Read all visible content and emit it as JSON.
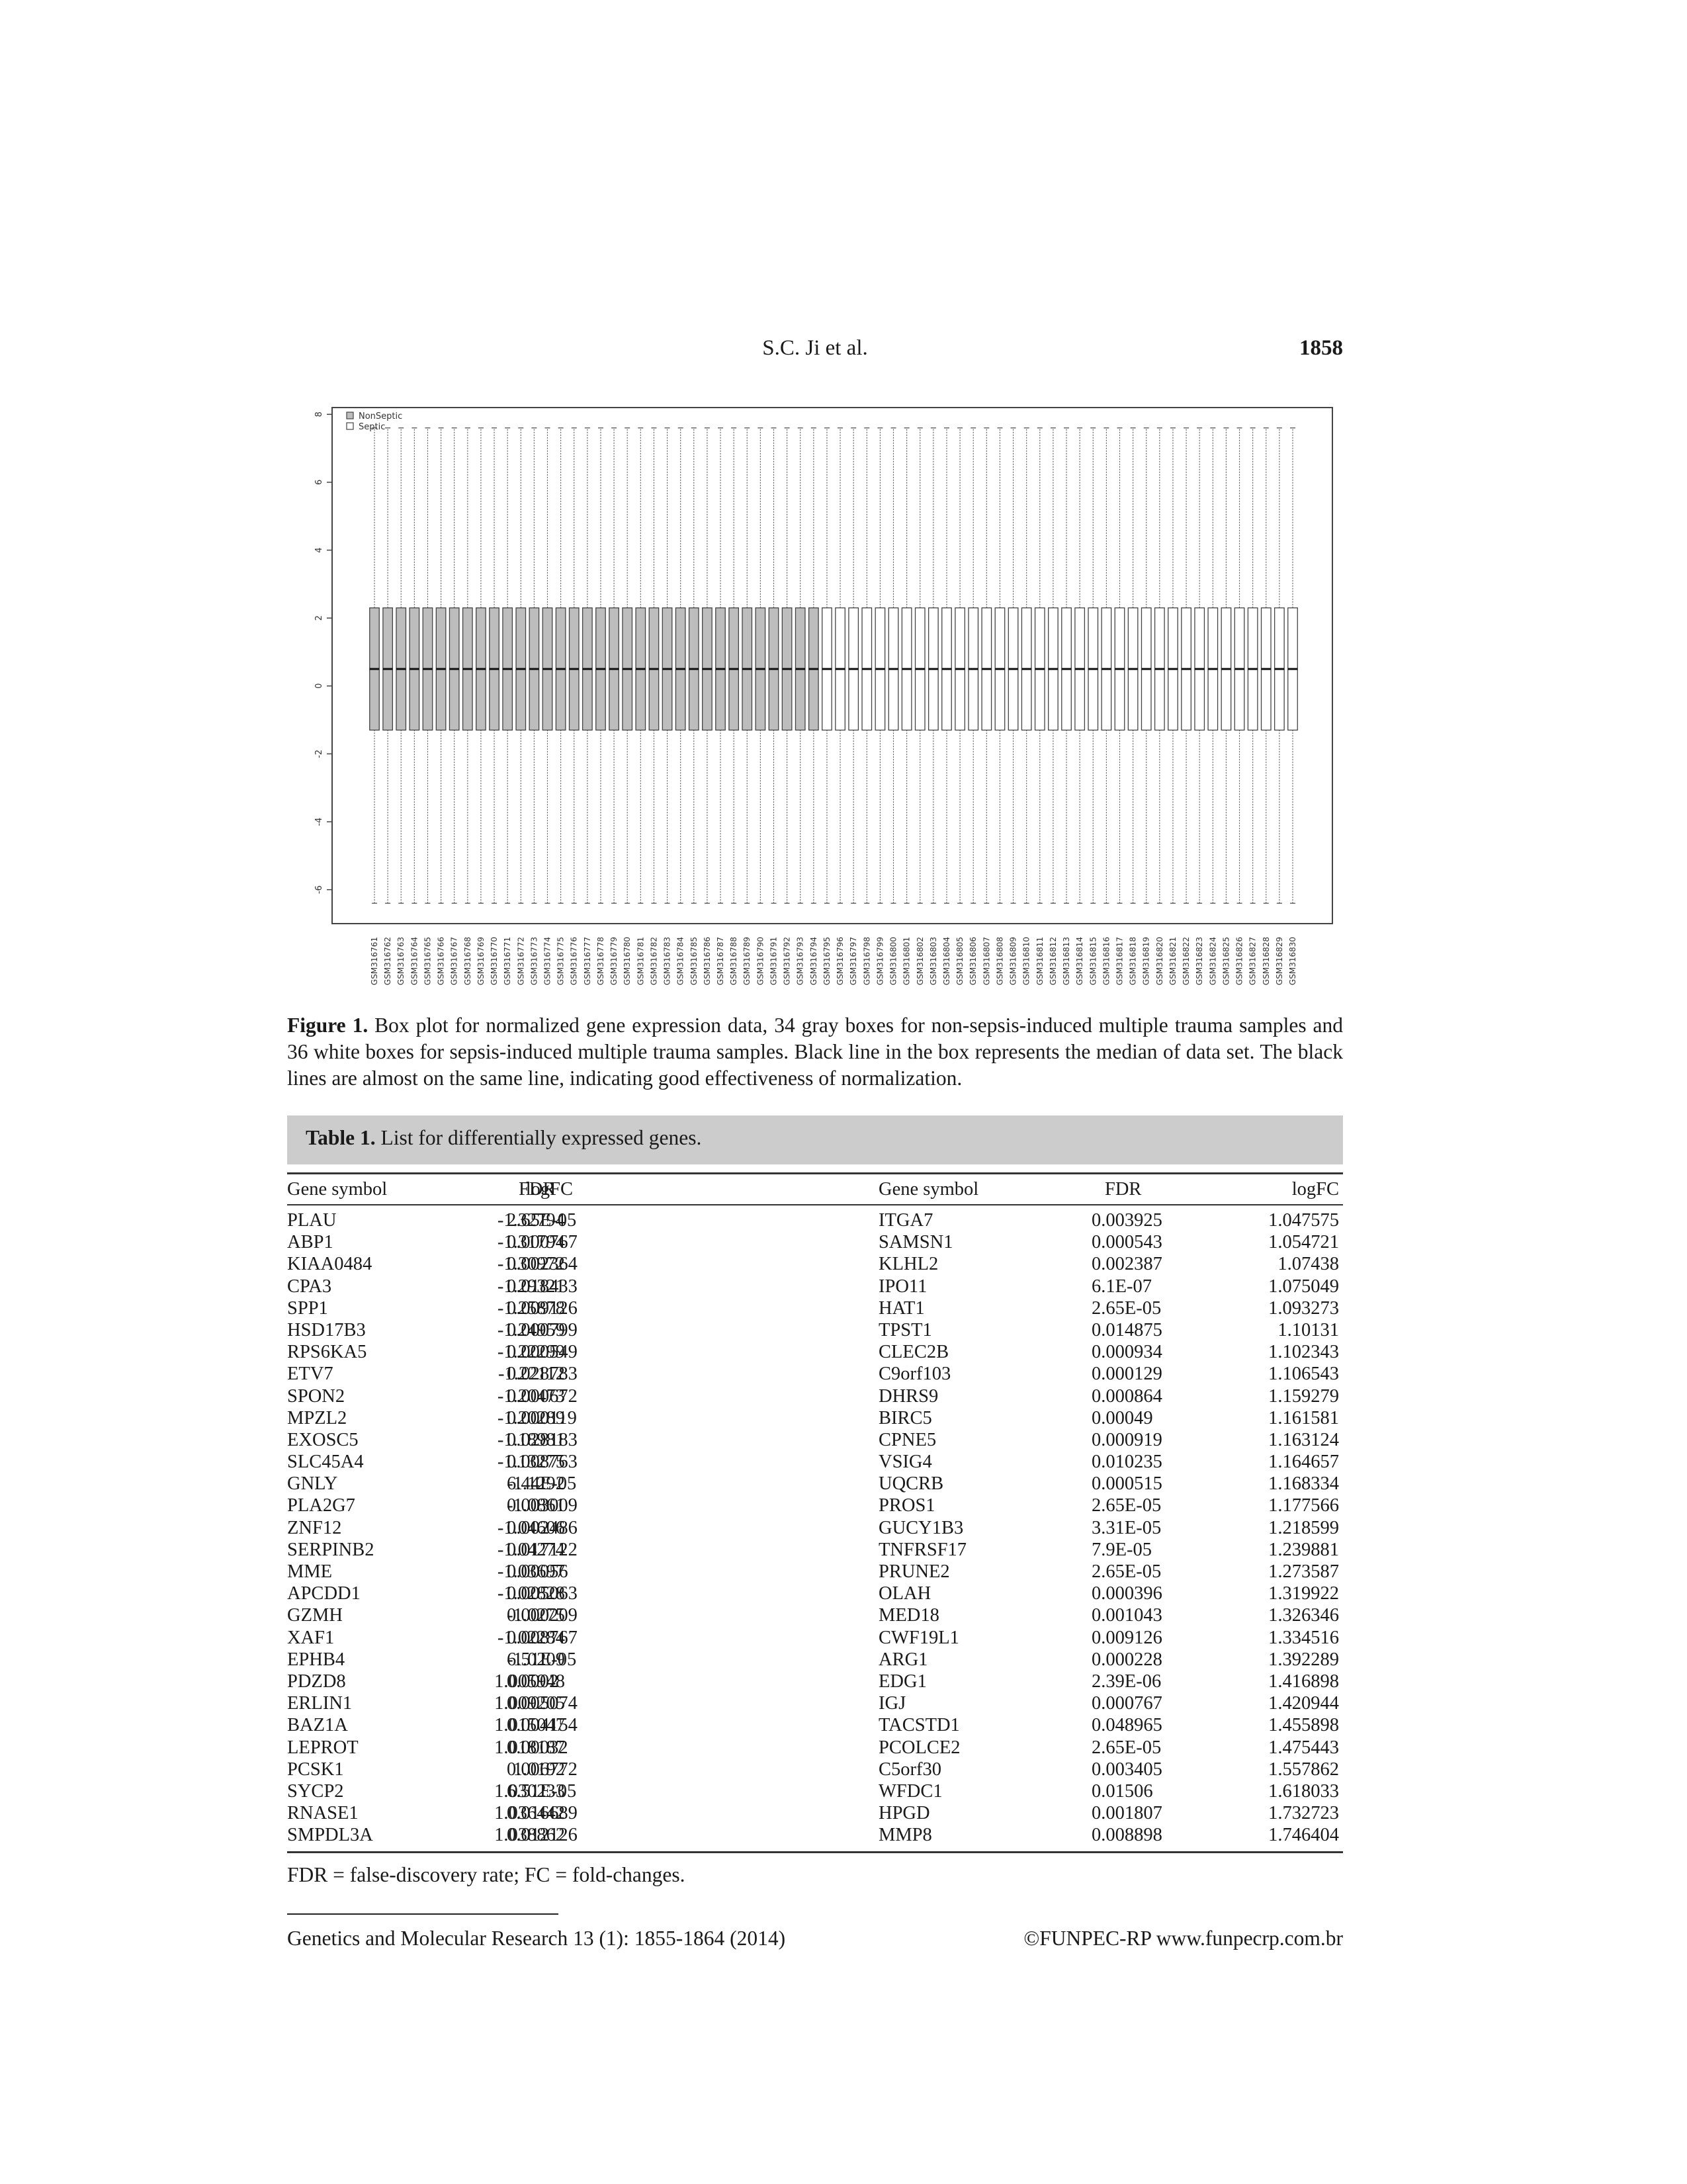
{
  "header": {
    "authors": "S.C. Ji et al.",
    "page_number": "1858"
  },
  "figure": {
    "caption_label": "Figure 1.",
    "caption_text": "Box plot for normalized gene expression data, 34 gray boxes for non-sepsis-induced multiple trauma samples and 36 white boxes for sepsis-induced multiple trauma samples. Black line in the box represents the median of data set. The black lines are almost on the same line, indicating good effectiveness of normalization."
  },
  "chart_data": {
    "type": "box",
    "title": "",
    "xlabel": "",
    "ylabel": "",
    "ylim": [
      -7,
      8.2
    ],
    "yticks": [
      -6,
      -4,
      -2,
      0,
      2,
      4,
      6,
      8
    ],
    "legend": {
      "position": "top-left",
      "entries": [
        {
          "name": "NonSeptic",
          "color": "#bdbdbd"
        },
        {
          "name": "Septic",
          "color": "#ffffff"
        }
      ]
    },
    "categories": [
      "GSM316761",
      "GSM316762",
      "GSM316763",
      "GSM316764",
      "GSM316765",
      "GSM316766",
      "GSM316767",
      "GSM316768",
      "GSM316769",
      "GSM316770",
      "GSM316771",
      "GSM316772",
      "GSM316773",
      "GSM316774",
      "GSM316775",
      "GSM316776",
      "GSM316777",
      "GSM316778",
      "GSM316779",
      "GSM316780",
      "GSM316781",
      "GSM316782",
      "GSM316783",
      "GSM316784",
      "GSM316785",
      "GSM316786",
      "GSM316787",
      "GSM316788",
      "GSM316789",
      "GSM316790",
      "GSM316791",
      "GSM316792",
      "GSM316793",
      "GSM316794",
      "GSM316795",
      "GSM316796",
      "GSM316797",
      "GSM316798",
      "GSM316799",
      "GSM316800",
      "GSM316801",
      "GSM316802",
      "GSM316803",
      "GSM316804",
      "GSM316805",
      "GSM316806",
      "GSM316807",
      "GSM316808",
      "GSM316809",
      "GSM316810",
      "GSM316811",
      "GSM316812",
      "GSM316813",
      "GSM316814",
      "GSM316815",
      "GSM316816",
      "GSM316817",
      "GSM316818",
      "GSM316819",
      "GSM316820",
      "GSM316821",
      "GSM316822",
      "GSM316823",
      "GSM316824",
      "GSM316825",
      "GSM316826",
      "GSM316827",
      "GSM316828",
      "GSM316829",
      "GSM316830"
    ],
    "groups": {
      "NonSeptic_count": 34,
      "Septic_count": 36
    },
    "box_stats": {
      "whisker_low": -6.4,
      "q1": -1.3,
      "median": 0.5,
      "q3": 2.3,
      "whisker_high": 7.6
    }
  },
  "table": {
    "title_label": "Table 1.",
    "title_text": "List for differentially expressed genes.",
    "headers": [
      "Gene symbol",
      "FDR",
      "logFC",
      "Gene symbol",
      "FDR",
      "logFC"
    ],
    "rows": [
      [
        "PLAU",
        "2.65E-05",
        "-1.32794",
        "ITGA7",
        "0.003925",
        "1.047575"
      ],
      [
        "ABP1",
        "0.000767",
        "-1.31794",
        "SAMSN1",
        "0.000543",
        "1.054721"
      ],
      [
        "KIAA0484",
        "0.002364",
        "-1.30972",
        "KLHL2",
        "0.002387",
        "1.07438"
      ],
      [
        "CPA3",
        "0.018433",
        "-1.29321",
        "IPO11",
        "6.1E-07",
        "1.075049"
      ],
      [
        "SPP1",
        "0.009126",
        "-1.25878",
        "HAT1",
        "2.65E-05",
        "1.093273"
      ],
      [
        "HSD17B3",
        "0.000799",
        "-1.24959",
        "TPST1",
        "0.014875",
        "1.10131"
      ],
      [
        "RPS6KA5",
        "0.000549",
        "-1.22299",
        "CLEC2B",
        "0.000934",
        "1.102343"
      ],
      [
        "ETV7",
        "0.028783",
        "-1.22112",
        "C9orf103",
        "0.000129",
        "1.106543"
      ],
      [
        "SPON2",
        "0.000672",
        "-1.20473",
        "DHRS9",
        "0.000864",
        "1.159279"
      ],
      [
        "MPZL2",
        "0.000119",
        "-1.20289",
        "BIRC5",
        "0.00049",
        "1.161581"
      ],
      [
        "EXOSC5",
        "0.028183",
        "-1.18981",
        "CPNE5",
        "0.000919",
        "1.163124"
      ],
      [
        "SLC45A4",
        "0.008763",
        "-1.13275",
        "VSIG4",
        "0.010235",
        "1.164657"
      ],
      [
        "GNLY",
        "6.44E-05",
        "-1.1292",
        "UQCRB",
        "0.000515",
        "1.168334"
      ],
      [
        "PLA2G7",
        "0.003009",
        "-1.0861",
        "PROS1",
        "2.65E-05",
        "1.177566"
      ],
      [
        "ZNF12",
        "0.002486",
        "-1.04606",
        "GUCY1B3",
        "3.31E-05",
        "1.218599"
      ],
      [
        "SERPINB2",
        "0.017122",
        "-1.04274",
        "TNFRSF17",
        "7.9E-05",
        "1.239881"
      ],
      [
        "MME",
        "0.00056",
        "-1.03697",
        "PRUNE2",
        "2.65E-05",
        "1.273587"
      ],
      [
        "APCDD1",
        "0.005063",
        "-1.02828",
        "OLAH",
        "0.000396",
        "1.319922"
      ],
      [
        "GZMH",
        "0.000209",
        "-1.0275",
        "MED18",
        "0.001043",
        "1.326346"
      ],
      [
        "XAF1",
        "0.008767",
        "-1.02284",
        "CWF19L1",
        "0.009126",
        "1.334516"
      ],
      [
        "EPHB4",
        "6.51E-05",
        "-1.0209",
        "ARG1",
        "0.000228",
        "1.392289"
      ],
      [
        "PDZD8",
        "0.0002",
        "1.005948",
        "EDG1",
        "2.39E-06",
        "1.416898"
      ],
      [
        "ERLIN1",
        "0.005074",
        "1.009205",
        "IGJ",
        "0.000767",
        "1.420944"
      ],
      [
        "BAZ1A",
        "0.004154",
        "1.015047",
        "TACSTD1",
        "0.048965",
        "1.455898"
      ],
      [
        "LEPROT",
        "0.00032",
        "1.018187",
        "PCOLCE2",
        "2.65E-05",
        "1.475443"
      ],
      [
        "PCSK1",
        "0.006772",
        "1.0192",
        "C5orf30",
        "0.003405",
        "1.557862"
      ],
      [
        "SYCP2",
        "6.51E-05",
        "1.030233",
        "WFDC1",
        "0.01506",
        "1.618033"
      ],
      [
        "RNASE1",
        "0.016689",
        "1.036442",
        "HPGD",
        "0.001807",
        "1.732723"
      ],
      [
        "SMPDL3A",
        "0.012126",
        "1.038862",
        "MMP8",
        "0.008898",
        "1.746404"
      ]
    ],
    "footnote": "FDR = false-discovery rate; FC = fold-changes."
  },
  "footer": {
    "journal": "Genetics and Molecular Research 13 (1): 1855-1864 (2014)",
    "copyright": "©FUNPEC-RP www.funpecrp.com.br"
  }
}
